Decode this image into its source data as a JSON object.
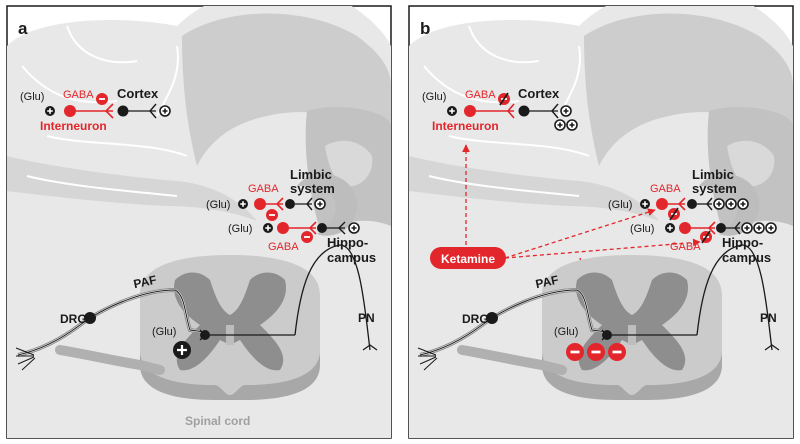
{
  "colors": {
    "accent_red": "#e3262b",
    "neuron_black": "#1a1a1a",
    "brain_light": "#e6e6e6",
    "brain_mid": "#cfcfcf",
    "brain_dark": "#b9b9b9",
    "cord_text_gray": "#a0a0a0"
  },
  "panel_a": {
    "letter": "a",
    "glu": "(Glu)",
    "gaba": "GABA",
    "cortex": "Cortex",
    "interneuron": "Interneuron",
    "limbic_1": "Limbic",
    "limbic_2": "system",
    "hippo_1": "Hippo-",
    "hippo_2": "campus",
    "paf": "PAF",
    "drg": "DRG",
    "pn": "PN",
    "spinal_cord": "Spinal cord"
  },
  "panel_b": {
    "letter": "b",
    "glu": "(Glu)",
    "gaba": "GABA",
    "cortex": "Cortex",
    "interneuron": "Interneuron",
    "limbic_1": "Limbic",
    "limbic_2": "system",
    "hippo_1": "Hippo-",
    "hippo_2": "campus",
    "paf": "PAF",
    "drg": "DRG",
    "pn": "PN",
    "ketamine": "Ketamine"
  },
  "symbols": {
    "plus": "+",
    "minus": "−"
  }
}
